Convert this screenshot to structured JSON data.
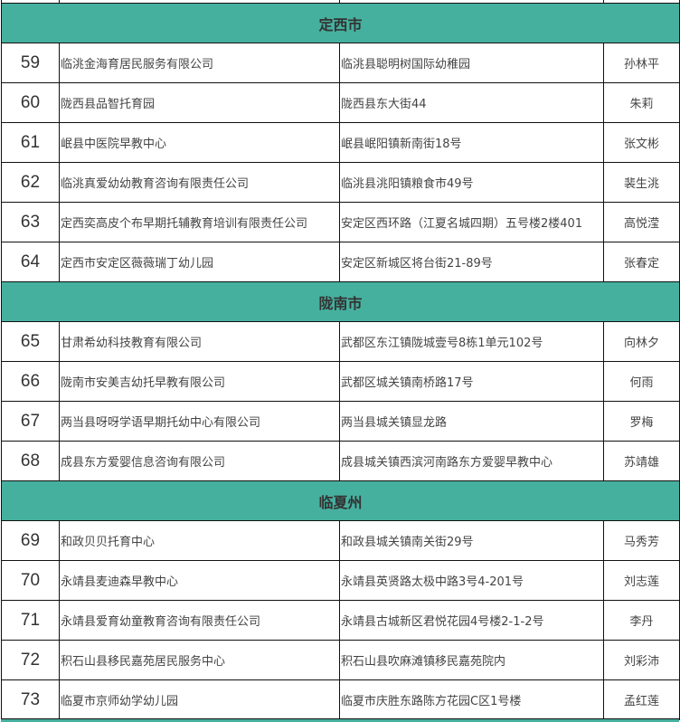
{
  "colors": {
    "region_header_bg": "#46b09f",
    "border": "#111111",
    "text": "#444444"
  },
  "sections": [
    {
      "region": "定西市",
      "rows": [
        {
          "no": "59",
          "org": "临洮金海育居民服务有限公司",
          "address": "临洮县聪明树国际幼稚园",
          "contact": "孙林平"
        },
        {
          "no": "60",
          "org": "陇西县品智托育园",
          "address": "陇西县东大街44",
          "contact": "朱莉"
        },
        {
          "no": "61",
          "org": "岷县中医院早教中心",
          "address": "岷县岷阳镇新南街18号",
          "contact": "张文彬"
        },
        {
          "no": "62",
          "org": "临洮真爱幼幼教育咨询有限责任公司",
          "address": "临洮县洮阳镇粮食市49号",
          "contact": "裴生洮"
        },
        {
          "no": "63",
          "org": "定西奕高皮个布早期托辅教育培训有限责任公司",
          "address": "安定区西环路（江夏名城四期）五号楼2楼401",
          "contact": "高悦滢"
        },
        {
          "no": "64",
          "org": "定西市安定区薇薇瑞丁幼儿园",
          "address": "安定区新城区将台街21-89号",
          "contact": "张春定"
        }
      ]
    },
    {
      "region": "陇南市",
      "rows": [
        {
          "no": "65",
          "org": "甘肃希幼科技教育有限公司",
          "address": "武都区东江镇陇城壹号8栋1单元102号",
          "contact": "向林夕"
        },
        {
          "no": "66",
          "org": "陇南市安美吉幼托早教有限公司",
          "address": "武都区城关镇南桥路17号",
          "contact": "何雨"
        },
        {
          "no": "67",
          "org": "两当县呀呀学语早期托幼中心有限公司",
          "address": "两当县城关镇显龙路",
          "contact": "罗梅"
        },
        {
          "no": "68",
          "org": "成县东方爱婴信息咨询有限公司",
          "address": "成县城关镇西滨河南路东方爱婴早教中心",
          "contact": "苏靖雄"
        }
      ]
    },
    {
      "region": "临夏州",
      "rows": [
        {
          "no": "69",
          "org": "和政贝贝托育中心",
          "address": "和政县城关镇南关街29号",
          "contact": "马秀芳"
        },
        {
          "no": "70",
          "org": "永靖县麦迪森早教中心",
          "address": "永靖县英贤路太极中路3号4-201号",
          "contact": "刘志莲"
        },
        {
          "no": "71",
          "org": "永靖县爱育幼童教育咨询有限责任公司",
          "address": "永靖县古城新区君悦花园4号楼2-1-2号",
          "contact": "李丹"
        },
        {
          "no": "72",
          "org": "积石山县移民嘉苑居民服务中心",
          "address": "积石山县吹麻滩镇移民嘉苑院内",
          "contact": "刘彩沛"
        },
        {
          "no": "73",
          "org": "临夏市京师幼学幼儿园",
          "address": "临夏市庆胜东路陈方花园C区1号楼",
          "contact": "孟红莲"
        }
      ]
    }
  ]
}
